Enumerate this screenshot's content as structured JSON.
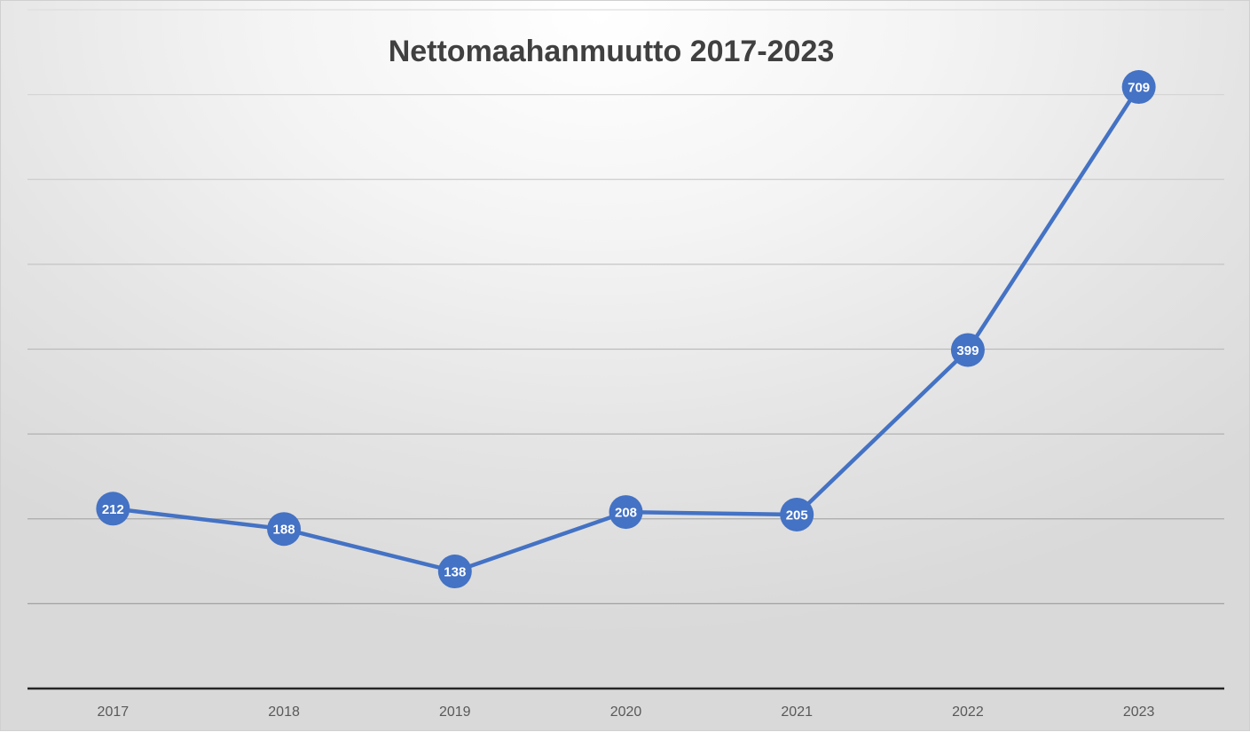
{
  "chart_data": {
    "type": "line",
    "title": "Nettomaahanmuutto 2017-2023",
    "xlabel": "",
    "ylabel": "",
    "categories": [
      "2017",
      "2018",
      "2019",
      "2020",
      "2021",
      "2022",
      "2023"
    ],
    "series": [
      {
        "values": [
          212,
          188,
          138,
          208,
          205,
          399,
          709
        ],
        "color": "#4472C4",
        "data_labels": [
          "212",
          "188",
          "138",
          "208",
          "205",
          "399",
          "709"
        ]
      }
    ],
    "ylim": [
      0,
      800
    ],
    "y_gridline_step": 100,
    "grid": true,
    "legend": "none",
    "marker": "circle"
  }
}
